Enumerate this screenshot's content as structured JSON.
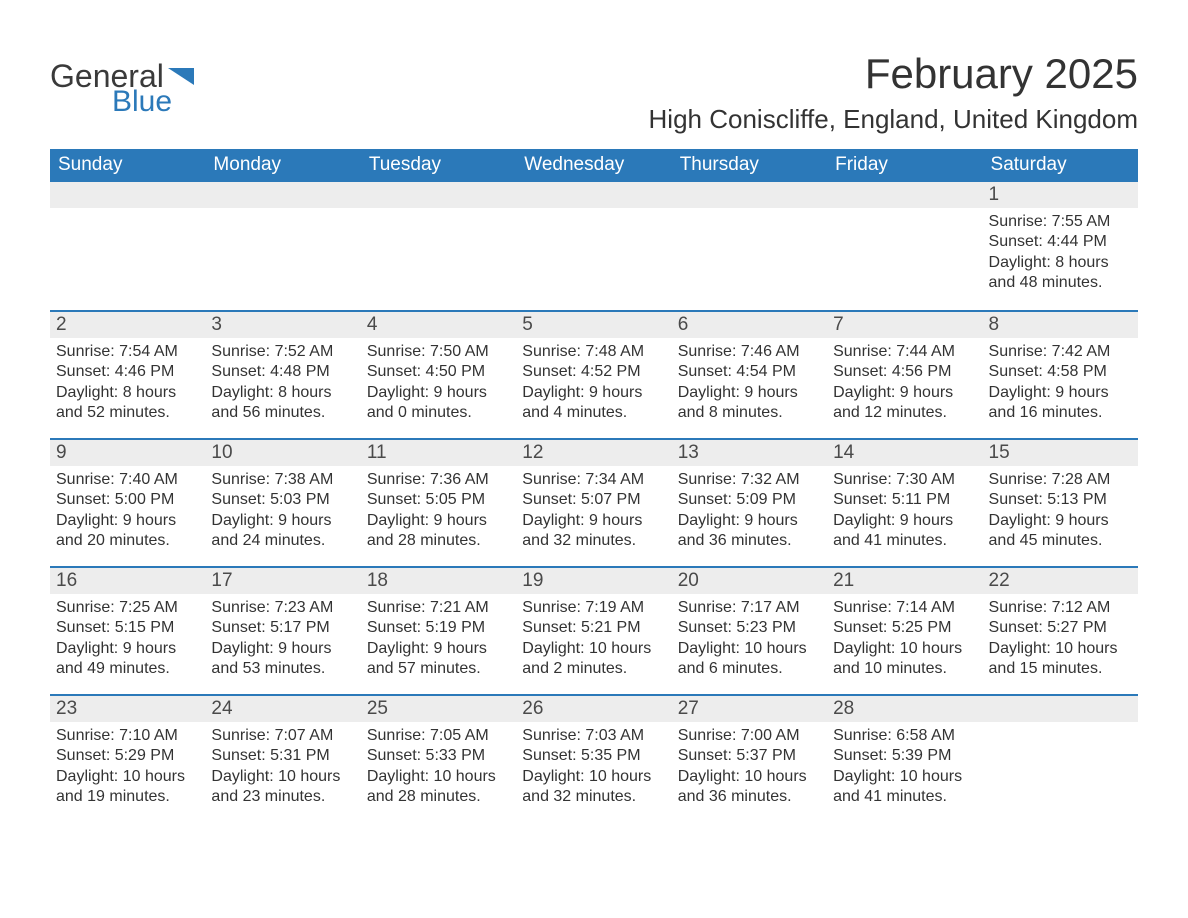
{
  "brand": {
    "word1": "General",
    "word2": "Blue",
    "flag_color": "#2b79b9",
    "word1_color": "#3a3a3a",
    "word2_color": "#2b79b9"
  },
  "title": "February 2025",
  "location": "High Coniscliffe, England, United Kingdom",
  "colors": {
    "header_bg": "#2b79b9",
    "header_text": "#ffffff",
    "row_divider": "#2b79b9",
    "daynum_bg": "#ededed",
    "text": "#333333",
    "page_bg": "#ffffff"
  },
  "fonts": {
    "title_size_pt": 32,
    "location_size_pt": 20,
    "dow_size_pt": 14,
    "body_size_pt": 12
  },
  "days_of_week": [
    "Sunday",
    "Monday",
    "Tuesday",
    "Wednesday",
    "Thursday",
    "Friday",
    "Saturday"
  ],
  "weeks": [
    [
      {
        "empty": true
      },
      {
        "empty": true
      },
      {
        "empty": true
      },
      {
        "empty": true
      },
      {
        "empty": true
      },
      {
        "empty": true
      },
      {
        "n": "1",
        "sunrise": "Sunrise: 7:55 AM",
        "sunset": "Sunset: 4:44 PM",
        "day1": "Daylight: 8 hours",
        "day2": "and 48 minutes."
      }
    ],
    [
      {
        "n": "2",
        "sunrise": "Sunrise: 7:54 AM",
        "sunset": "Sunset: 4:46 PM",
        "day1": "Daylight: 8 hours",
        "day2": "and 52 minutes."
      },
      {
        "n": "3",
        "sunrise": "Sunrise: 7:52 AM",
        "sunset": "Sunset: 4:48 PM",
        "day1": "Daylight: 8 hours",
        "day2": "and 56 minutes."
      },
      {
        "n": "4",
        "sunrise": "Sunrise: 7:50 AM",
        "sunset": "Sunset: 4:50 PM",
        "day1": "Daylight: 9 hours",
        "day2": "and 0 minutes."
      },
      {
        "n": "5",
        "sunrise": "Sunrise: 7:48 AM",
        "sunset": "Sunset: 4:52 PM",
        "day1": "Daylight: 9 hours",
        "day2": "and 4 minutes."
      },
      {
        "n": "6",
        "sunrise": "Sunrise: 7:46 AM",
        "sunset": "Sunset: 4:54 PM",
        "day1": "Daylight: 9 hours",
        "day2": "and 8 minutes."
      },
      {
        "n": "7",
        "sunrise": "Sunrise: 7:44 AM",
        "sunset": "Sunset: 4:56 PM",
        "day1": "Daylight: 9 hours",
        "day2": "and 12 minutes."
      },
      {
        "n": "8",
        "sunrise": "Sunrise: 7:42 AM",
        "sunset": "Sunset: 4:58 PM",
        "day1": "Daylight: 9 hours",
        "day2": "and 16 minutes."
      }
    ],
    [
      {
        "n": "9",
        "sunrise": "Sunrise: 7:40 AM",
        "sunset": "Sunset: 5:00 PM",
        "day1": "Daylight: 9 hours",
        "day2": "and 20 minutes."
      },
      {
        "n": "10",
        "sunrise": "Sunrise: 7:38 AM",
        "sunset": "Sunset: 5:03 PM",
        "day1": "Daylight: 9 hours",
        "day2": "and 24 minutes."
      },
      {
        "n": "11",
        "sunrise": "Sunrise: 7:36 AM",
        "sunset": "Sunset: 5:05 PM",
        "day1": "Daylight: 9 hours",
        "day2": "and 28 minutes."
      },
      {
        "n": "12",
        "sunrise": "Sunrise: 7:34 AM",
        "sunset": "Sunset: 5:07 PM",
        "day1": "Daylight: 9 hours",
        "day2": "and 32 minutes."
      },
      {
        "n": "13",
        "sunrise": "Sunrise: 7:32 AM",
        "sunset": "Sunset: 5:09 PM",
        "day1": "Daylight: 9 hours",
        "day2": "and 36 minutes."
      },
      {
        "n": "14",
        "sunrise": "Sunrise: 7:30 AM",
        "sunset": "Sunset: 5:11 PM",
        "day1": "Daylight: 9 hours",
        "day2": "and 41 minutes."
      },
      {
        "n": "15",
        "sunrise": "Sunrise: 7:28 AM",
        "sunset": "Sunset: 5:13 PM",
        "day1": "Daylight: 9 hours",
        "day2": "and 45 minutes."
      }
    ],
    [
      {
        "n": "16",
        "sunrise": "Sunrise: 7:25 AM",
        "sunset": "Sunset: 5:15 PM",
        "day1": "Daylight: 9 hours",
        "day2": "and 49 minutes."
      },
      {
        "n": "17",
        "sunrise": "Sunrise: 7:23 AM",
        "sunset": "Sunset: 5:17 PM",
        "day1": "Daylight: 9 hours",
        "day2": "and 53 minutes."
      },
      {
        "n": "18",
        "sunrise": "Sunrise: 7:21 AM",
        "sunset": "Sunset: 5:19 PM",
        "day1": "Daylight: 9 hours",
        "day2": "and 57 minutes."
      },
      {
        "n": "19",
        "sunrise": "Sunrise: 7:19 AM",
        "sunset": "Sunset: 5:21 PM",
        "day1": "Daylight: 10 hours",
        "day2": "and 2 minutes."
      },
      {
        "n": "20",
        "sunrise": "Sunrise: 7:17 AM",
        "sunset": "Sunset: 5:23 PM",
        "day1": "Daylight: 10 hours",
        "day2": "and 6 minutes."
      },
      {
        "n": "21",
        "sunrise": "Sunrise: 7:14 AM",
        "sunset": "Sunset: 5:25 PM",
        "day1": "Daylight: 10 hours",
        "day2": "and 10 minutes."
      },
      {
        "n": "22",
        "sunrise": "Sunrise: 7:12 AM",
        "sunset": "Sunset: 5:27 PM",
        "day1": "Daylight: 10 hours",
        "day2": "and 15 minutes."
      }
    ],
    [
      {
        "n": "23",
        "sunrise": "Sunrise: 7:10 AM",
        "sunset": "Sunset: 5:29 PM",
        "day1": "Daylight: 10 hours",
        "day2": "and 19 minutes."
      },
      {
        "n": "24",
        "sunrise": "Sunrise: 7:07 AM",
        "sunset": "Sunset: 5:31 PM",
        "day1": "Daylight: 10 hours",
        "day2": "and 23 minutes."
      },
      {
        "n": "25",
        "sunrise": "Sunrise: 7:05 AM",
        "sunset": "Sunset: 5:33 PM",
        "day1": "Daylight: 10 hours",
        "day2": "and 28 minutes."
      },
      {
        "n": "26",
        "sunrise": "Sunrise: 7:03 AM",
        "sunset": "Sunset: 5:35 PM",
        "day1": "Daylight: 10 hours",
        "day2": "and 32 minutes."
      },
      {
        "n": "27",
        "sunrise": "Sunrise: 7:00 AM",
        "sunset": "Sunset: 5:37 PM",
        "day1": "Daylight: 10 hours",
        "day2": "and 36 minutes."
      },
      {
        "n": "28",
        "sunrise": "Sunrise: 6:58 AM",
        "sunset": "Sunset: 5:39 PM",
        "day1": "Daylight: 10 hours",
        "day2": "and 41 minutes."
      },
      {
        "empty": true
      }
    ]
  ]
}
